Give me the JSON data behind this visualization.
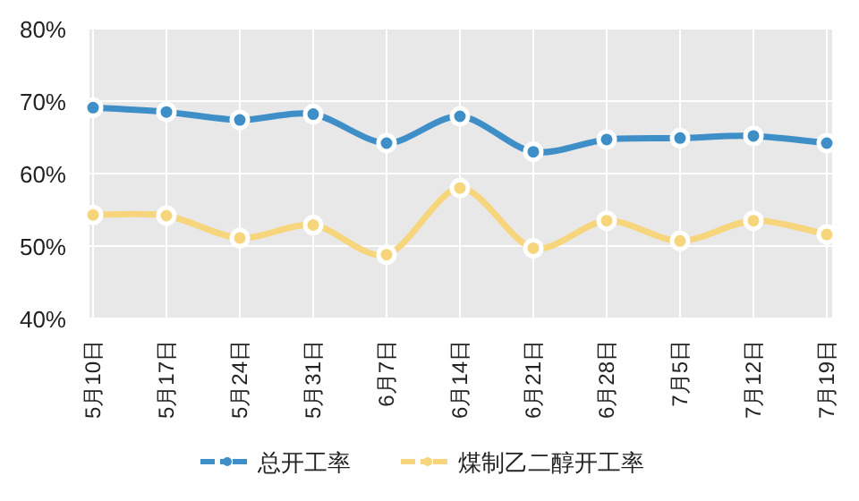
{
  "chart_data": {
    "type": "line",
    "categories": [
      "5月10日",
      "5月17日",
      "5月24日",
      "5月31日",
      "6月7日",
      "6月14日",
      "6月21日",
      "6月28日",
      "7月5日",
      "7月12日",
      "7月19日"
    ],
    "series": [
      {
        "name": "总开工率",
        "color": "#3e8ec8",
        "values": [
          69.1,
          68.5,
          67.4,
          68.2,
          64.2,
          67.9,
          63.0,
          64.7,
          64.9,
          65.2,
          64.2
        ]
      },
      {
        "name": "煤制乙二醇开工率",
        "color": "#f6d57c",
        "values": [
          54.3,
          54.2,
          51.1,
          52.9,
          48.8,
          58.0,
          49.7,
          53.5,
          50.7,
          53.5,
          51.6
        ]
      }
    ],
    "ylim": [
      40,
      80
    ],
    "yticks": [
      {
        "value": 40,
        "label": "40%"
      },
      {
        "value": 50,
        "label": "50%"
      },
      {
        "value": 60,
        "label": "60%"
      },
      {
        "value": 70,
        "label": "70%"
      },
      {
        "value": 80,
        "label": "80%"
      }
    ],
    "grid": true,
    "legend": "bottom",
    "marker": "circle"
  }
}
